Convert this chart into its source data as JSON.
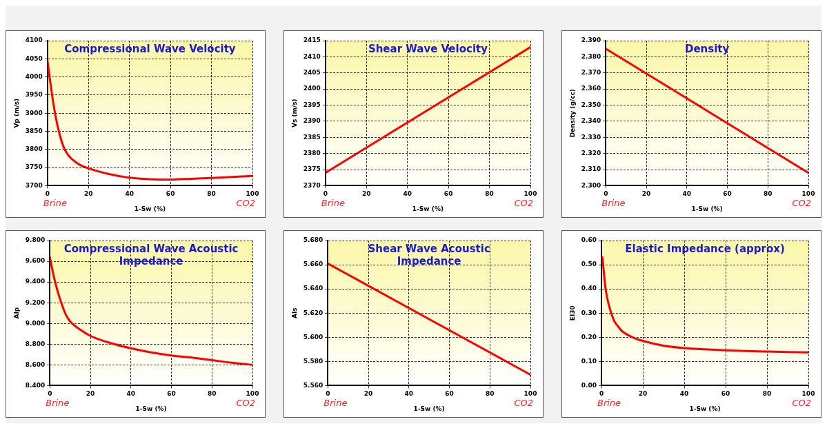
{
  "chart_data": [
    {
      "type": "line",
      "title": "Compressional Wave Velocity",
      "xlabel": "1-Sw (%)",
      "ylabel": "Vp (m/s)",
      "annotations": [
        "Brine",
        "CO2"
      ],
      "grid": true,
      "legend": false,
      "marker": "none",
      "line_style": "solid",
      "xlim": [
        0,
        100
      ],
      "xticks": [
        0,
        20,
        40,
        60,
        80,
        100
      ],
      "ylim": [
        3700,
        4100
      ],
      "yticks": [
        3700,
        3750,
        3800,
        3850,
        3900,
        3950,
        4000,
        4050,
        4100
      ],
      "x": [
        0,
        2,
        4,
        6,
        8,
        10,
        15,
        20,
        30,
        40,
        50,
        60,
        70,
        80,
        90,
        100
      ],
      "series": [
        {
          "color": "#ff0000",
          "values": [
            4045,
            3960,
            3890,
            3840,
            3805,
            3785,
            3760,
            3748,
            3732,
            3722,
            3718,
            3717,
            3719,
            3721,
            3724,
            3727
          ]
        }
      ]
    },
    {
      "type": "line",
      "title": "Shear Wave Velocity",
      "xlabel": "1-Sw (%)",
      "ylabel": "Vs (m/s)",
      "annotations": [
        "Brine",
        "CO2"
      ],
      "grid": true,
      "legend": false,
      "marker": "none",
      "line_style": "solid",
      "xlim": [
        0,
        100
      ],
      "xticks": [
        0,
        20,
        40,
        60,
        80,
        100
      ],
      "ylim": [
        2370,
        2415
      ],
      "yticks": [
        2370,
        2375,
        2380,
        2385,
        2390,
        2395,
        2400,
        2405,
        2410,
        2415
      ],
      "x": [
        0,
        100
      ],
      "series": [
        {
          "color": "#ff0000",
          "values": [
            2374,
            2413
          ]
        }
      ]
    },
    {
      "type": "line",
      "title": "Density",
      "xlabel": "1-Sw (%)",
      "ylabel": "Density (g/cc)",
      "annotations": [
        "Brine",
        "CO2"
      ],
      "grid": true,
      "legend": false,
      "marker": "none",
      "line_style": "solid",
      "xlim": [
        0,
        100
      ],
      "xticks": [
        0,
        20,
        40,
        60,
        80,
        100
      ],
      "ylim": [
        2.3,
        2.39
      ],
      "yticks": [
        {
          "value": 2.3,
          "label": "2.300"
        },
        {
          "value": 2.31,
          "label": "2.310"
        },
        {
          "value": 2.32,
          "label": "2.320"
        },
        {
          "value": 2.33,
          "label": "2.330"
        },
        {
          "value": 2.34,
          "label": "2.340"
        },
        {
          "value": 2.35,
          "label": "2.350"
        },
        {
          "value": 2.36,
          "label": "2.360"
        },
        {
          "value": 2.37,
          "label": "2.370"
        },
        {
          "value": 2.38,
          "label": "2.380"
        },
        {
          "value": 2.39,
          "label": "2.390"
        }
      ],
      "x": [
        0,
        100
      ],
      "series": [
        {
          "color": "#ff0000",
          "values": [
            2.385,
            2.308
          ]
        }
      ]
    },
    {
      "type": "line",
      "title": "Compressional Wave Acoustic Impedance",
      "xlabel": "1-Sw (%)",
      "ylabel": "AIp",
      "annotations": [
        "Brine",
        "CO2"
      ],
      "grid": true,
      "legend": false,
      "marker": "none",
      "line_style": "solid",
      "xlim": [
        0,
        100
      ],
      "xticks": [
        0,
        20,
        40,
        60,
        80,
        100
      ],
      "ylim": [
        8.4,
        9.8
      ],
      "yticks": [
        {
          "value": 8.4,
          "label": "8.400"
        },
        {
          "value": 8.6,
          "label": "8.600"
        },
        {
          "value": 8.8,
          "label": "8.800"
        },
        {
          "value": 9.0,
          "label": "9.000"
        },
        {
          "value": 9.2,
          "label": "9.200"
        },
        {
          "value": 9.4,
          "label": "9.400"
        },
        {
          "value": 9.6,
          "label": "9.600"
        },
        {
          "value": 9.8,
          "label": "9.800"
        }
      ],
      "x": [
        0,
        2,
        4,
        6,
        8,
        10,
        15,
        20,
        30,
        40,
        50,
        60,
        70,
        80,
        90,
        100
      ],
      "series": [
        {
          "color": "#ff0000",
          "values": [
            9.64,
            9.45,
            9.3,
            9.18,
            9.08,
            9.02,
            8.94,
            8.88,
            8.81,
            8.76,
            8.72,
            8.69,
            8.67,
            8.645,
            8.62,
            8.6
          ]
        }
      ]
    },
    {
      "type": "line",
      "title": "Shear Wave Acoustic Impedance",
      "xlabel": "1-Sw (%)",
      "ylabel": "AIs",
      "annotations": [
        "Brine",
        "CO2"
      ],
      "grid": true,
      "legend": false,
      "marker": "none",
      "line_style": "solid",
      "xlim": [
        0,
        100
      ],
      "xticks": [
        0,
        20,
        40,
        60,
        80,
        100
      ],
      "ylim": [
        5.56,
        5.68
      ],
      "yticks": [
        {
          "value": 5.56,
          "label": "5.560"
        },
        {
          "value": 5.58,
          "label": "5.580"
        },
        {
          "value": 5.6,
          "label": "5.600"
        },
        {
          "value": 5.62,
          "label": "5.620"
        },
        {
          "value": 5.64,
          "label": "5.640"
        },
        {
          "value": 5.66,
          "label": "5.660"
        },
        {
          "value": 5.68,
          "label": "5.680"
        }
      ],
      "x": [
        0,
        100
      ],
      "series": [
        {
          "color": "#ff0000",
          "values": [
            5.661,
            5.569
          ]
        }
      ]
    },
    {
      "type": "line",
      "title": "Elastic Impedance (approx)",
      "xlabel": "1-Sw (%)",
      "ylabel": "EI30",
      "annotations": [
        "Brine",
        "CO2"
      ],
      "grid": true,
      "legend": false,
      "marker": "none",
      "line_style": "solid",
      "xlim": [
        0,
        100
      ],
      "xticks": [
        0,
        20,
        40,
        60,
        80,
        100
      ],
      "ylim": [
        0,
        0.6
      ],
      "yticks": [
        {
          "value": 0,
          "label": "0.00"
        },
        {
          "value": 0.1,
          "label": "0.10"
        },
        {
          "value": 0.2,
          "label": "0.20"
        },
        {
          "value": 0.3,
          "label": "0.30"
        },
        {
          "value": 0.4,
          "label": "0.40"
        },
        {
          "value": 0.5,
          "label": "0.50"
        },
        {
          "value": 0.6,
          "label": "0.60"
        }
      ],
      "x": [
        0.5,
        2,
        4,
        6,
        8,
        10,
        15,
        20,
        30,
        40,
        50,
        60,
        70,
        80,
        90,
        100
      ],
      "series": [
        {
          "color": "#ff0000",
          "values": [
            0.53,
            0.4,
            0.32,
            0.27,
            0.245,
            0.225,
            0.2,
            0.185,
            0.165,
            0.155,
            0.15,
            0.146,
            0.143,
            0.141,
            0.139,
            0.137
          ]
        }
      ]
    }
  ]
}
